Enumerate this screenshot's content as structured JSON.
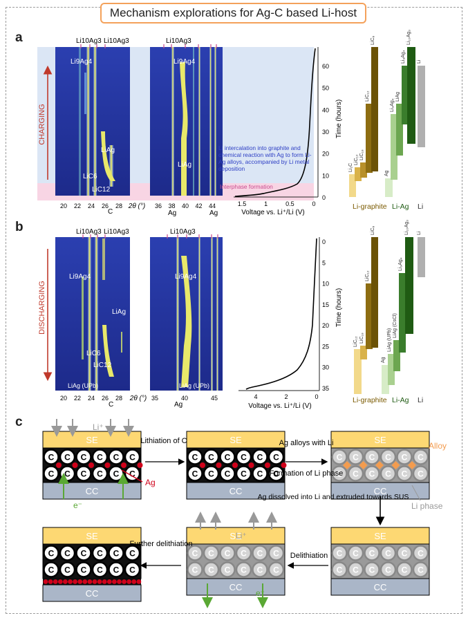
{
  "title": "Mechanism explorations for Ag-C based Li-host",
  "panel_labels": {
    "a": "a",
    "b": "b",
    "c": "c"
  },
  "colors": {
    "accent_border": "#f4a15a",
    "charging_red": "#c0392b",
    "graphite_gold": "#b8860b",
    "liag_green": "#3a7d2c",
    "li_grey": "#b0b0b0",
    "se_yellow": "#fdd873",
    "cc_blue": "#aab6c8",
    "alloy_orange": "#f39c4f",
    "ag_red": "#d0021b"
  },
  "a": {
    "side_label": "CHARGING",
    "top_labels": {
      "left1": "Li10Ag3",
      "left2": "Li10Ag3",
      "mid": "Li10Ag3"
    },
    "peaks": {
      "li9ag4": "Li9Ag4",
      "li9ag4_mid": "Li9Ag4",
      "liag_left": "LiAg",
      "liag_mid": "LiAg",
      "lic6": "LiC6",
      "lic12": "LiC12",
      "c": "C",
      "ag1": "Ag",
      "ag2": "Ag"
    },
    "x_ticks_left": [
      "20",
      "22",
      "24",
      "26",
      "28"
    ],
    "x_ticks_mid": [
      "36",
      "38",
      "40",
      "42",
      "44"
    ],
    "x_axis_label": "2θ (°)",
    "voltage_ticks": [
      "1.5",
      "1",
      "0.5",
      "0"
    ],
    "voltage_label": "Voltage vs. Li⁺/Li (V)",
    "time_ticks": [
      "0",
      "10",
      "20",
      "30",
      "40",
      "50",
      "60"
    ],
    "time_label": "Time (hours)",
    "annotation_blue": "Li intercalation into graphite and chemical reaction with Ag to form Li-Ag alloys, accompanied by Li metal deposition",
    "annotation_pink": "Interphase formation",
    "bar_groups": [
      "Li-graphite",
      "Li-Ag",
      "Li"
    ],
    "bars_graphite": [
      "Li₂C",
      "LiC₁₂",
      "LiC₁₈",
      "LiC₁₂",
      "LiC₆"
    ],
    "bars_liag": [
      "Ag",
      "Li₉Ag₄",
      "LiAg",
      "Li₉Ag₄",
      "Li₁₀Ag₃"
    ],
    "bars_li": [
      "Li"
    ]
  },
  "b": {
    "side_label": "DISCHARGING",
    "top_labels": {
      "left1": "Li10Ag3",
      "left2": "Li10Ag3",
      "mid": "Li10Ag3"
    },
    "peaks": {
      "li9ag4": "Li9Ag4",
      "li9ag4_mid": "Li9Ag4",
      "liag_left": "LiAg",
      "lic6": "LiC6",
      "lic12": "LiC12",
      "liag_upb": "LiAg (UPb)",
      "liag_upb_mid": "LiAg (UPb)",
      "c": "C",
      "ag": "Ag"
    },
    "x_ticks_left": [
      "20",
      "22",
      "24",
      "26",
      "28"
    ],
    "x_ticks_mid": [
      "35",
      "40",
      "45"
    ],
    "x_axis_label": "2θ (°)",
    "voltage_ticks": [
      "4",
      "2",
      "0"
    ],
    "voltage_label": "Voltage vs. Li⁺/Li (V)",
    "time_ticks": [
      "0",
      "5",
      "10",
      "15",
      "20",
      "25",
      "30",
      "35"
    ],
    "time_label": "Time (hours)",
    "bar_groups": [
      "Li-graphite",
      "Li-Ag",
      "Li"
    ],
    "bars_graphite": [
      "LiC₁₂",
      "LiC₁₈",
      "LiC₁₂",
      "LiC₆"
    ],
    "bars_liag": [
      "Ag",
      "LiAg (UPb)",
      "LiAg (CsCl)",
      "Li₉Ag₄",
      "Li₁₀Ag₃"
    ],
    "bars_li": [
      "Li"
    ]
  },
  "c": {
    "se": "SE",
    "cc": "CC",
    "c_letter": "C",
    "li_plus": "Li⁺",
    "e_minus": "e⁻",
    "ag": "Ag",
    "alloy": "Alloy",
    "li_phase": "Li phase",
    "arrow1": "Lithiation of C",
    "arrow2a": "Ag alloys with Li",
    "arrow2b": "Formation of Li phase",
    "arrow3": "Ag dissolved into Li and extruded towards SUS",
    "arrow4": "Delithiation",
    "arrow5": "Further delithiation"
  }
}
